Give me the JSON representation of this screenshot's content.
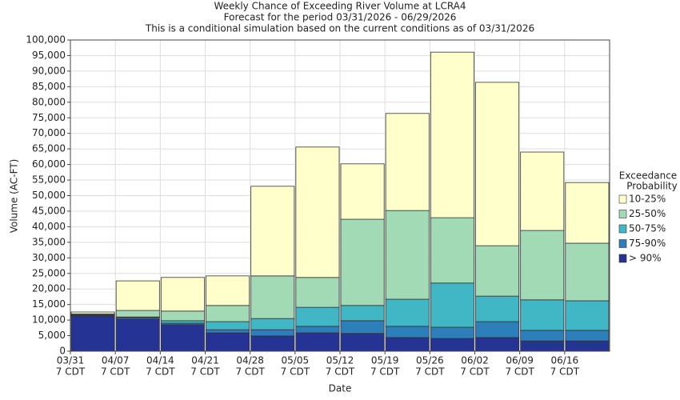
{
  "chart_data": {
    "type": "stacked-bar",
    "title": [
      "Weekly Chance of Exceeding River Volume at LCRA4",
      "Forecast for the period 03/31/2026 - 06/29/2026",
      "This is a conditional simulation based on the current conditions as of 03/31/2026"
    ],
    "x_label": "Date",
    "y_label": "Volume (AC-FT)",
    "legend_title": [
      "Exceedance",
      "Probability"
    ],
    "legend_position": "right",
    "categories": [
      [
        "03/31",
        "7 CDT"
      ],
      [
        "04/07",
        "7 CDT"
      ],
      [
        "04/14",
        "7 CDT"
      ],
      [
        "04/21",
        "7 CDT"
      ],
      [
        "04/28",
        "7 CDT"
      ],
      [
        "05/05",
        "7 CDT"
      ],
      [
        "05/12",
        "7 CDT"
      ],
      [
        "05/19",
        "7 CDT"
      ],
      [
        "05/26",
        "7 CDT"
      ],
      [
        "06/02",
        "7 CDT"
      ],
      [
        "06/09",
        "7 CDT"
      ],
      [
        "06/16",
        "7 CDT"
      ]
    ],
    "series": [
      {
        "name": "> 90%",
        "color": "#253494",
        "values": [
          11300,
          10300,
          8500,
          5900,
          4900,
          5900,
          5700,
          4400,
          4100,
          4400,
          3300,
          3300
        ]
      },
      {
        "name": "75-90%",
        "color": "#2c7fb8",
        "values": [
          200,
          500,
          500,
          1000,
          2000,
          2100,
          4100,
          3600,
          3600,
          5100,
          3400,
          3400
        ]
      },
      {
        "name": "50-75%",
        "color": "#41b6c4",
        "values": [
          200,
          200,
          800,
          2600,
          3600,
          6100,
          4900,
          8700,
          14200,
          8200,
          9800,
          9500
        ]
      },
      {
        "name": "25-50%",
        "color": "#a1dab4",
        "values": [
          300,
          2100,
          3100,
          5200,
          13700,
          9600,
          27700,
          28500,
          21000,
          16200,
          22300,
          18500
        ]
      },
      {
        "name": "10-25%",
        "color": "#ffffcc",
        "values": [
          600,
          9500,
          10800,
          9500,
          28800,
          41900,
          17800,
          31200,
          53200,
          52500,
          25200,
          19500
        ]
      }
    ],
    "ylim": [
      0,
      100000
    ],
    "yticks": [
      0,
      {
        "value": 5000,
        "label": "5,000"
      },
      {
        "value": 10000,
        "label": "10,000"
      },
      {
        "value": 15000,
        "label": "15,000"
      },
      {
        "value": 20000,
        "label": "20,000"
      },
      {
        "value": 25000,
        "label": "25,000"
      },
      {
        "value": 30000,
        "label": "30,000"
      },
      {
        "value": 35000,
        "label": "35,000"
      },
      {
        "value": 40000,
        "label": "40,000"
      },
      {
        "value": 45000,
        "label": "45,000"
      },
      {
        "value": 50000,
        "label": "50,000"
      },
      {
        "value": 55000,
        "label": "55,000"
      },
      {
        "value": 60000,
        "label": "60,000"
      },
      {
        "value": 65000,
        "label": "65,000"
      },
      {
        "value": 70000,
        "label": "70,000"
      },
      {
        "value": 75000,
        "label": "75,000"
      },
      {
        "value": 80000,
        "label": "80,000"
      },
      {
        "value": 85000,
        "label": "85,000"
      },
      {
        "value": 90000,
        "label": "90,000"
      },
      {
        "value": 95000,
        "label": "95,000"
      },
      {
        "value": 100000,
        "label": "100,000"
      }
    ],
    "grid": true
  }
}
